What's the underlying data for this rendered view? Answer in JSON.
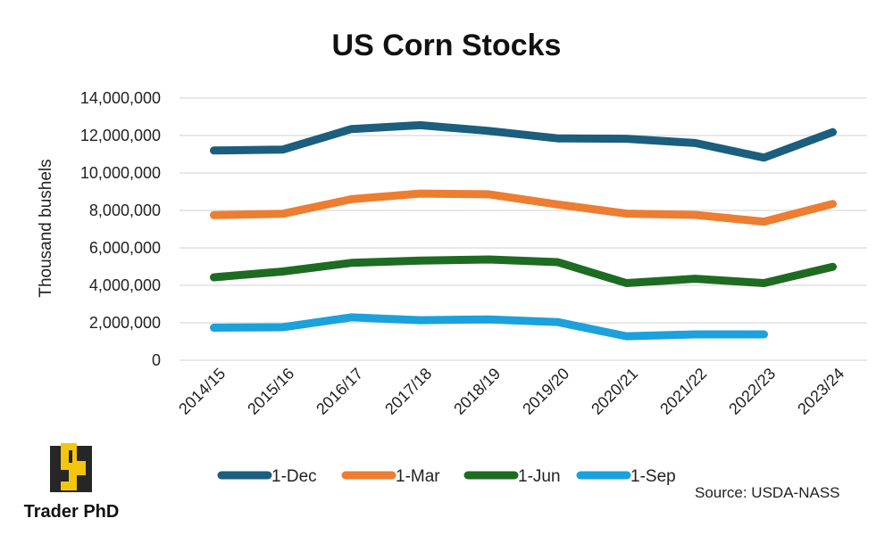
{
  "chart_data": {
    "type": "line",
    "title": "US Corn Stocks",
    "ylabel": "Thousand bushels",
    "xlabel": "",
    "categories": [
      "2014/15",
      "2015/16",
      "2016/17",
      "2017/18",
      "2018/19",
      "2019/20",
      "2020/21",
      "2021/22",
      "2022/23",
      "2023/24"
    ],
    "ylim": [
      0,
      14000000
    ],
    "yticks": [
      0,
      2000000,
      4000000,
      6000000,
      8000000,
      10000000,
      12000000,
      14000000
    ],
    "ytick_labels": [
      "0",
      "2,000,000",
      "4,000,000",
      "6,000,000",
      "8,000,000",
      "10,000,000",
      "12,000,000",
      "14,000,000"
    ],
    "grid": true,
    "legend_position": "bottom",
    "series": [
      {
        "name": "1-Dec",
        "color": "#1b5e7e",
        "values": [
          11200000,
          11250000,
          12350000,
          12550000,
          12250000,
          11850000,
          11830000,
          11600000,
          10820000,
          12180000
        ]
      },
      {
        "name": "1-Mar",
        "color": "#ed7d31",
        "values": [
          7750000,
          7820000,
          8600000,
          8900000,
          8860000,
          8320000,
          7830000,
          7760000,
          7400000,
          8350000
        ]
      },
      {
        "name": "1-Jun",
        "color": "#1e6b22",
        "values": [
          4430000,
          4740000,
          5200000,
          5320000,
          5380000,
          5240000,
          4120000,
          4350000,
          4120000,
          4990000
        ]
      },
      {
        "name": "1-Sep",
        "color": "#1ba1dc",
        "values": [
          1740000,
          1760000,
          2290000,
          2140000,
          2180000,
          2040000,
          1280000,
          1380000,
          1380000,
          null
        ]
      }
    ],
    "source": "Source: USDA-NASS"
  },
  "branding": {
    "name": "Trader PhD",
    "logo_icon": "trader-phd-logo-icon",
    "logo_colors": {
      "dark": "#262626",
      "accent": "#f3c60d"
    }
  }
}
